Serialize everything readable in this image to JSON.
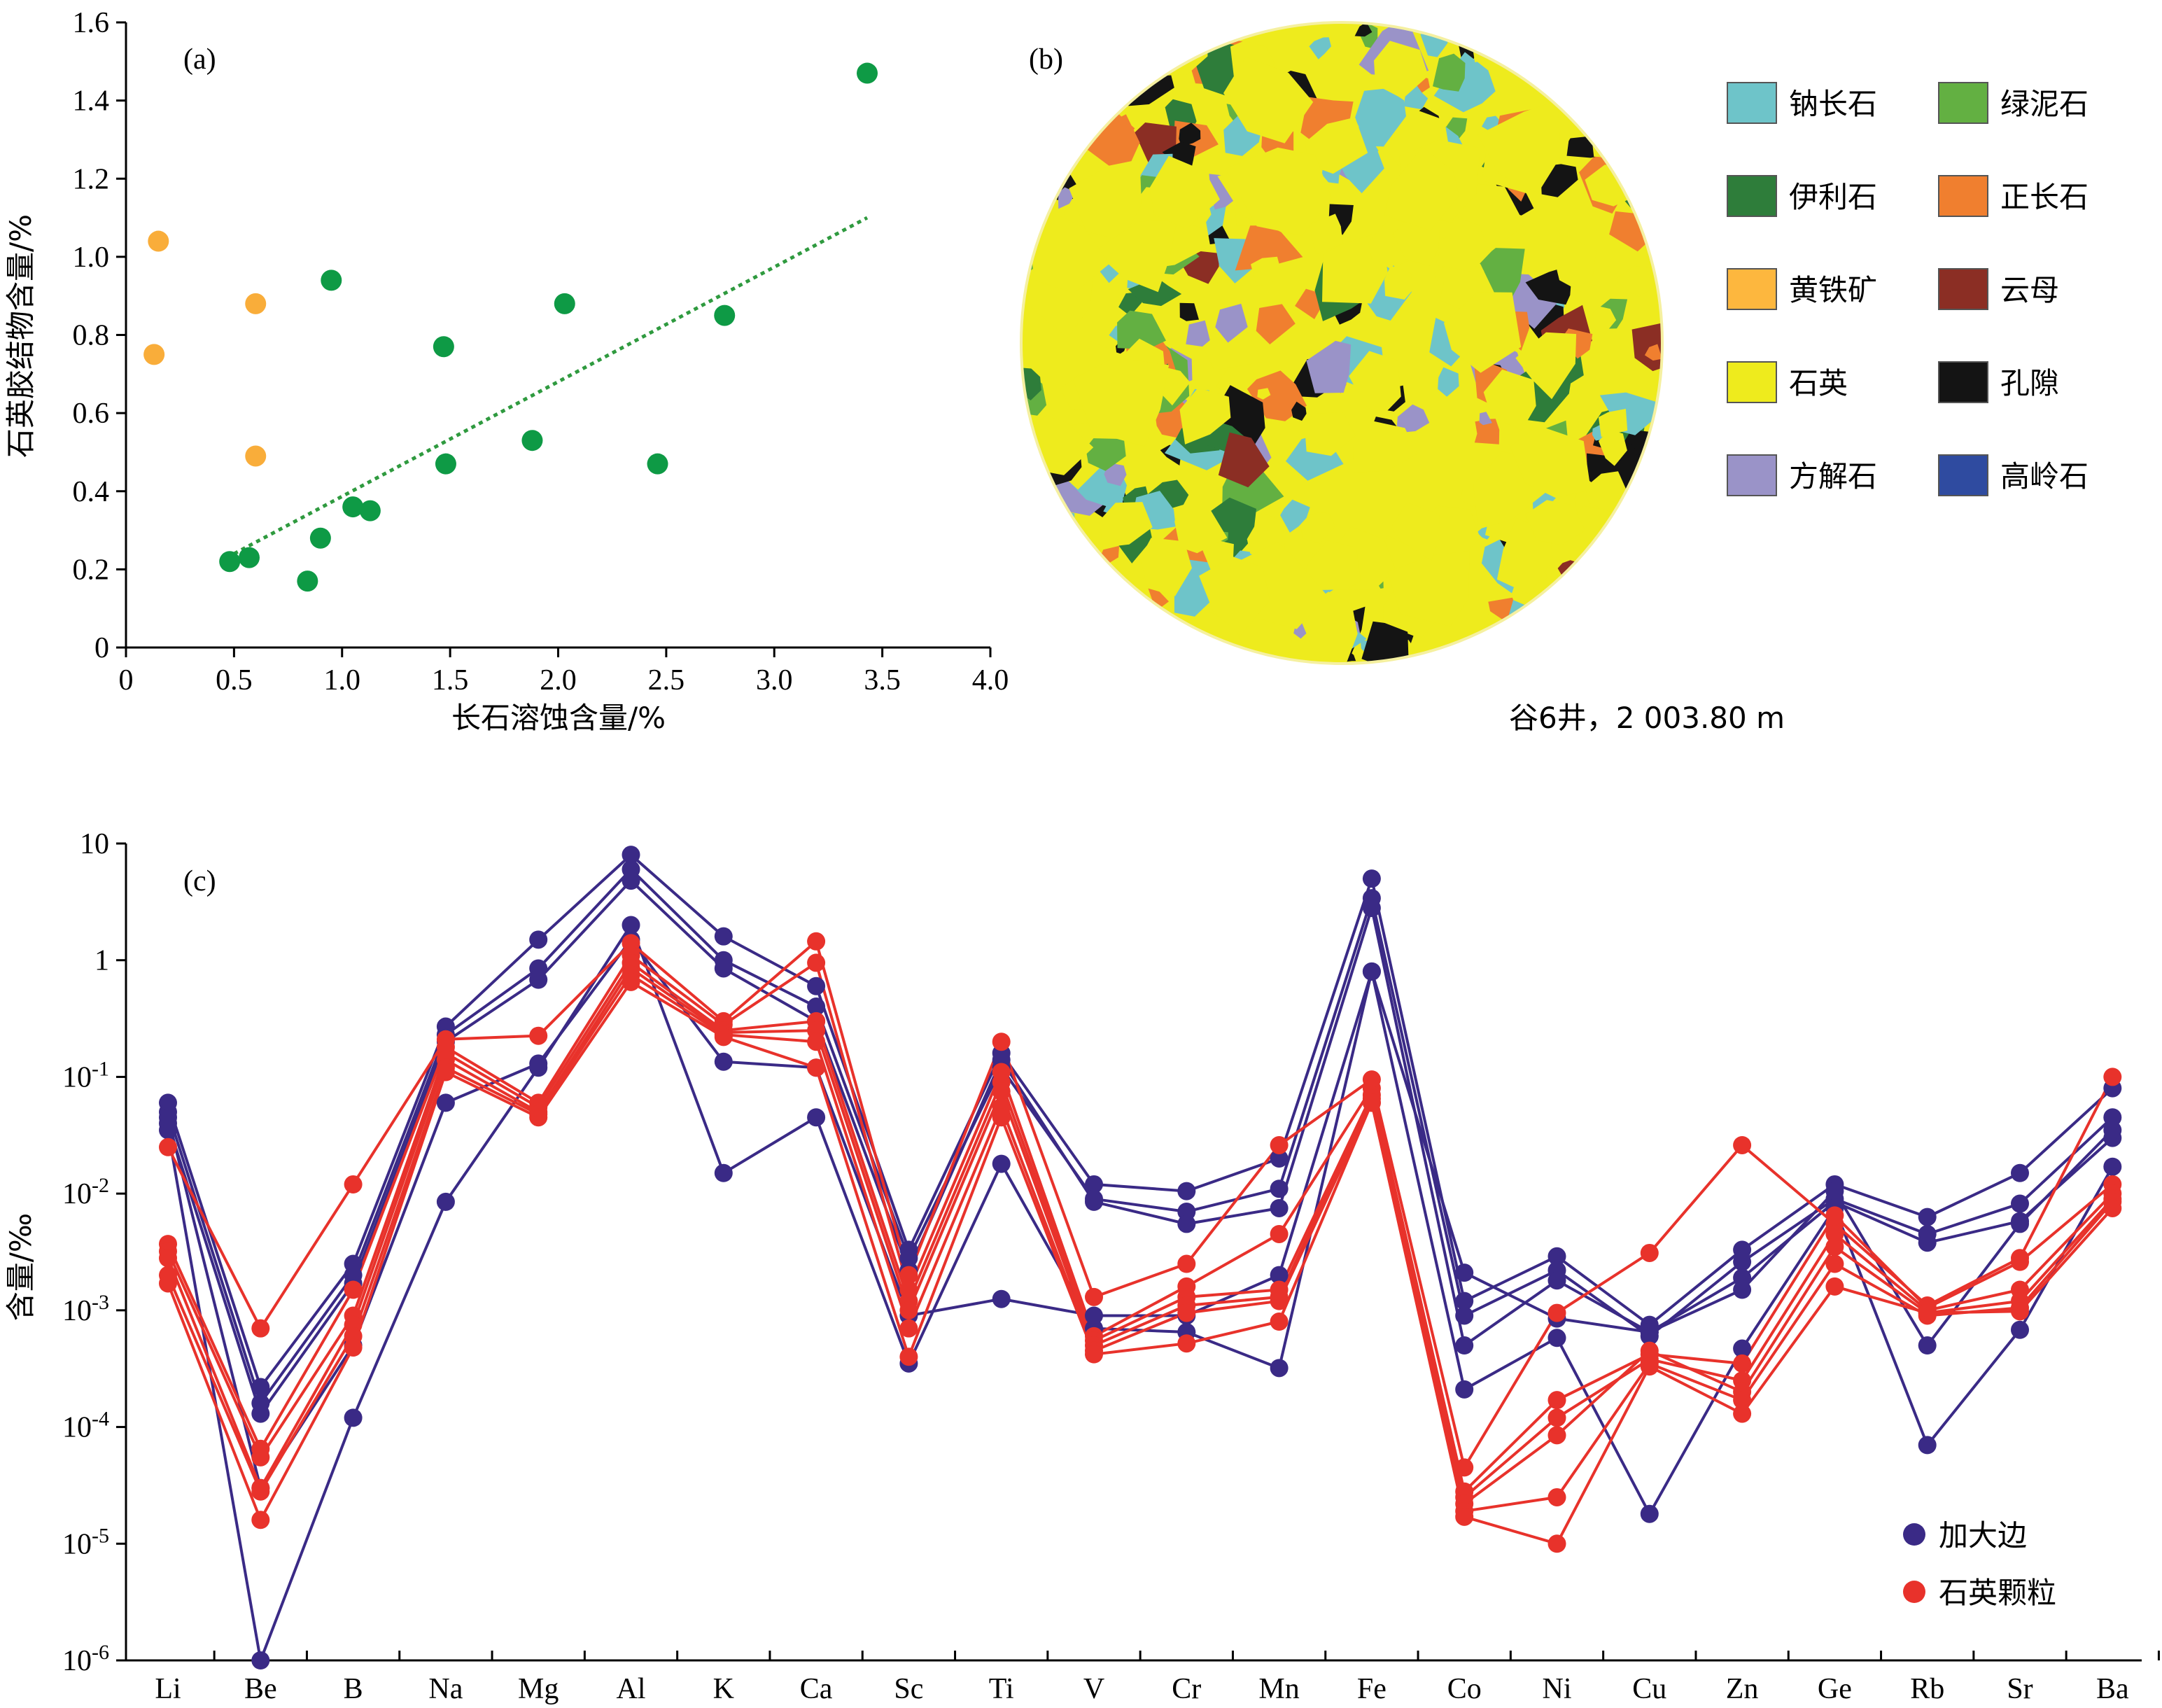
{
  "chart_data": [
    {
      "type": "scatter",
      "panel_label": "(a)",
      "xlabel": "长石溶蚀含量/%",
      "ylabel": "石英胶结物含量/%",
      "xlim": [
        0,
        4.0
      ],
      "ylim": [
        0,
        1.6
      ],
      "x_ticks": [
        "0",
        "0.5",
        "1.0",
        "1.5",
        "2.0",
        "2.5",
        "3.0",
        "3.5",
        "4.0"
      ],
      "y_ticks": [
        "0",
        "0.2",
        "0.4",
        "0.6",
        "0.8",
        "1.0",
        "1.2",
        "1.4",
        "1.6"
      ],
      "series": [
        {
          "color": "#0e9a45",
          "points": [
            [
              0.48,
              0.22
            ],
            [
              0.57,
              0.23
            ],
            [
              0.84,
              0.17
            ],
            [
              0.9,
              0.28
            ],
            [
              0.95,
              0.94
            ],
            [
              1.05,
              0.36
            ],
            [
              1.13,
              0.35
            ],
            [
              1.47,
              0.77
            ],
            [
              1.48,
              0.47
            ],
            [
              1.88,
              0.53
            ],
            [
              2.03,
              0.88
            ],
            [
              2.46,
              0.47
            ],
            [
              2.77,
              0.85
            ],
            [
              3.43,
              1.47
            ]
          ]
        },
        {
          "color": "#f9ad3a",
          "points": [
            [
              0.13,
              0.75
            ],
            [
              0.15,
              1.04
            ],
            [
              0.6,
              0.88
            ],
            [
              0.6,
              0.49
            ]
          ]
        }
      ],
      "trendline": {
        "color": "#2f9a3f",
        "x": [
          0.5,
          3.43
        ],
        "y": [
          0.24,
          1.1
        ]
      },
      "grid": false
    },
    {
      "type": "map",
      "panel_label": "(b)",
      "caption": "谷6井，2 003.80 m",
      "legend": [
        {
          "label": "钠长石",
          "color": "#6ec4c9"
        },
        {
          "label": "绿泥石",
          "color": "#63b042"
        },
        {
          "label": "伊利石",
          "color": "#2e7d3a"
        },
        {
          "label": "正长石",
          "color": "#f07f2f"
        },
        {
          "label": "黄铁矿",
          "color": "#fdb73e"
        },
        {
          "label": "云母",
          "color": "#8b2e24"
        },
        {
          "label": "石英",
          "color": "#eeeb1d"
        },
        {
          "label": "孔隙",
          "color": "#141414"
        },
        {
          "label": "方解石",
          "color": "#9a93c8"
        },
        {
          "label": "高岭石",
          "color": "#2f4ba0"
        }
      ]
    },
    {
      "type": "line",
      "panel_label": "(c)",
      "ylabel": "含量/‰",
      "yscale": "log",
      "ylim": [
        1e-06,
        10
      ],
      "y_ticks": [
        {
          "base": "10",
          "exp": "-6",
          "value": 1e-06
        },
        {
          "base": "10",
          "exp": "-5",
          "value": 1e-05
        },
        {
          "base": "10",
          "exp": "-4",
          "value": 0.0001
        },
        {
          "base": "10",
          "exp": "-3",
          "value": 0.001
        },
        {
          "base": "10",
          "exp": "-2",
          "value": 0.01
        },
        {
          "base": "10",
          "exp": "-1",
          "value": 0.1
        },
        {
          "base": "1",
          "exp": "",
          "value": 1
        },
        {
          "base": "10",
          "exp": "",
          "value": 10
        }
      ],
      "categories": [
        "Li",
        "Be",
        "B",
        "Na",
        "Mg",
        "Al",
        "K",
        "Ca",
        "Sc",
        "Ti",
        "V",
        "Cr",
        "Mn",
        "Fe",
        "Co",
        "Ni",
        "Cu",
        "Zn",
        "Ge",
        "Rb",
        "Sr",
        "Ba"
      ],
      "legend": [
        {
          "label": "加大边",
          "color": "#3a2a86"
        },
        {
          "label": "石英颗粒",
          "color": "#e8322b"
        }
      ],
      "series": [
        {
          "group": 0,
          "values": [
            0.06,
            0.00022,
            0.0025,
            0.27,
            1.5,
            8,
            1.6,
            0.6,
            0.0033,
            0.16,
            0.012,
            0.0105,
            0.02,
            5,
            0.0012,
            0.0029,
            0.00075,
            0.0033,
            0.012,
            0.0063,
            0.015,
            0.08
          ]
        },
        {
          "group": 0,
          "values": [
            0.05,
            0.00016,
            0.002,
            0.23,
            0.85,
            6,
            1.0,
            0.4,
            0.0028,
            0.12,
            0.009,
            0.007,
            0.011,
            3.4,
            0.0009,
            0.0022,
            0.0006,
            0.0026,
            0.009,
            0.0045,
            0.0082,
            0.045
          ]
        },
        {
          "group": 0,
          "values": [
            0.04,
            0.00013,
            0.0017,
            0.2,
            0.68,
            4.8,
            0.85,
            0.3,
            0.0022,
            0.14,
            0.0085,
            0.0055,
            0.0075,
            2.8,
            0.0005,
            0.0018,
            0.00065,
            0.0019,
            0.0085,
            0.0038,
            0.0058,
            0.03
          ]
        },
        {
          "group": 0,
          "values": [
            0.035,
            1e-06,
            0.00012,
            0.0085,
            0.12,
            2,
            0.015,
            0.045,
            0.00035,
            0.018,
            0.0007,
            0.00065,
            0.00032,
            0.8,
            0.00021,
            0.00058,
            1.8e-05,
            0.00047,
            0.0075,
            7e-05,
            0.00068,
            0.017
          ]
        },
        {
          "group": 0,
          "values": [
            0.045,
            3e-05,
            0.0005,
            0.06,
            0.13,
            1.5,
            0.135,
            0.12,
            0.0009,
            0.00125,
            0.0009,
            0.0009,
            0.002,
            0.8,
            0.0021,
            0.00085,
            0.00065,
            0.0015,
            0.0105,
            0.0005,
            0.0055,
            0.035
          ]
        },
        {
          "group": 1,
          "values": [
            0.025,
            0.0007,
            0.012,
            0.21,
            0.225,
            1.4,
            0.3,
            1.45,
            0.002,
            0.2,
            0.0013,
            0.0025,
            0.026,
            0.095,
            4.5e-05,
            0.00095,
            0.0031,
            0.026,
            0.0055,
            0.0011,
            0.0028,
            0.1
          ]
        },
        {
          "group": 1,
          "values": [
            0.0037,
            6.5e-05,
            0.0015,
            0.18,
            0.06,
            1.1,
            0.28,
            0.95,
            0.0015,
            0.11,
            0.0006,
            0.0016,
            0.0045,
            0.08,
            2.8e-05,
            0.00017,
            0.00042,
            0.00035,
            0.0065,
            0.00105,
            0.0026,
            0.012
          ]
        },
        {
          "group": 1,
          "values": [
            0.0032,
            5.5e-05,
            0.0009,
            0.16,
            0.055,
            0.95,
            0.25,
            0.3,
            0.0012,
            0.09,
            0.00055,
            0.0013,
            0.0015,
            0.07,
            2.5e-05,
            0.00012,
            0.00038,
            0.00025,
            0.0045,
            0.001,
            0.0015,
            0.01
          ]
        },
        {
          "group": 1,
          "values": [
            0.0028,
            3e-05,
            0.00075,
            0.14,
            0.05,
            0.85,
            0.24,
            0.25,
            0.001,
            0.075,
            0.0005,
            0.0011,
            0.0013,
            0.065,
            2.2e-05,
            8.5e-05,
            0.00045,
            0.0002,
            0.0035,
            0.00095,
            0.0012,
            0.009
          ]
        },
        {
          "group": 1,
          "values": [
            0.002,
            2.8e-05,
            0.0006,
            0.12,
            0.048,
            0.75,
            0.23,
            0.2,
            0.0007,
            0.055,
            0.00045,
            0.00095,
            0.0012,
            0.06,
            1.9e-05,
            2.5e-05,
            0.00035,
            0.00017,
            0.0025,
            0.0009,
            0.00105,
            0.0085
          ]
        },
        {
          "group": 1,
          "values": [
            0.0017,
            1.6e-05,
            0.00048,
            0.11,
            0.045,
            0.65,
            0.22,
            0.12,
            0.0004,
            0.045,
            0.00042,
            0.00052,
            0.0008,
            0.06,
            1.7e-05,
            1e-05,
            0.00033,
            0.00013,
            0.0016,
            0.00095,
            0.00098,
            0.0075
          ]
        }
      ]
    }
  ]
}
